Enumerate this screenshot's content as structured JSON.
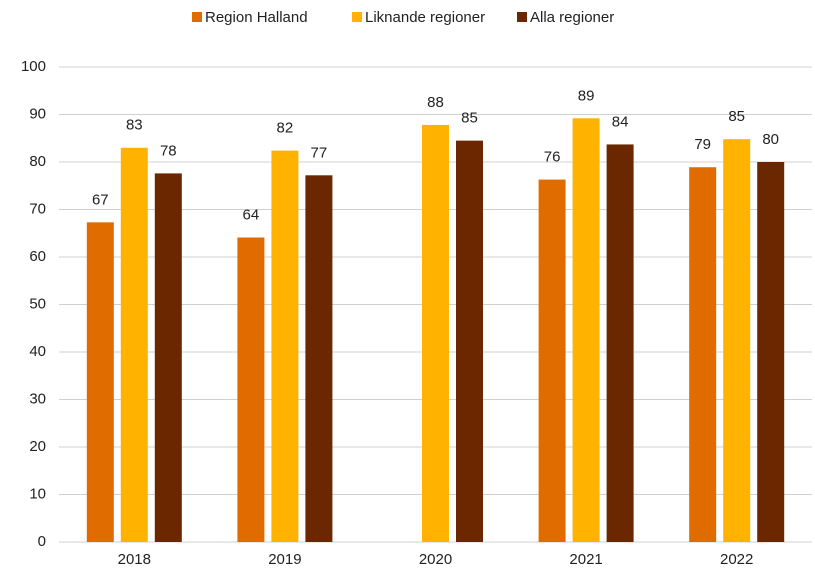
{
  "chart_data": {
    "type": "bar",
    "categories": [
      "2018",
      "2019",
      "2020",
      "2021",
      "2022"
    ],
    "series": [
      {
        "name": "Region Halland",
        "color": "#E06C00",
        "values": [
          67.3,
          64.1,
          null,
          76.3,
          78.9
        ],
        "value_labels": [
          "67",
          "64",
          null,
          "76",
          "79"
        ]
      },
      {
        "name": "Liknande regioner",
        "color": "#FFB300",
        "values": [
          83,
          82.4,
          87.8,
          89.2,
          84.8
        ],
        "value_labels": [
          "83",
          "82",
          "88",
          "89",
          "85"
        ]
      },
      {
        "name": "Alla regioner",
        "color": "#6B2800",
        "values": [
          77.6,
          77.2,
          84.5,
          83.7,
          80
        ],
        "value_labels": [
          "78",
          "77",
          "85",
          "84",
          "80"
        ]
      }
    ],
    "ylim": [
      0,
      100
    ],
    "yticks": [
      0,
      10,
      20,
      30,
      40,
      50,
      60,
      70,
      80,
      90,
      100
    ],
    "grid": true,
    "legend": "top"
  }
}
